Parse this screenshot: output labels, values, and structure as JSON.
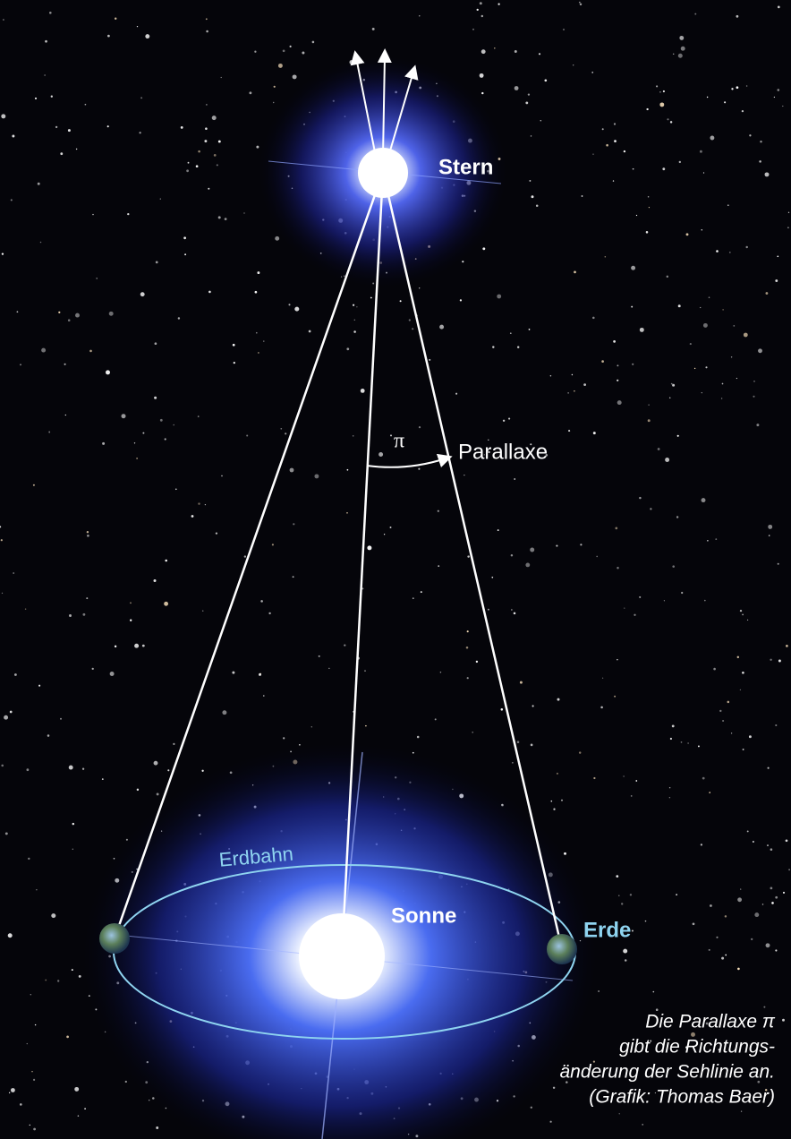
{
  "labels": {
    "star": "Stern",
    "angle": "π",
    "parallax": "Parallaxe",
    "orbit": "Erdbahn",
    "sun": "Sonne",
    "earth": "Erde"
  },
  "caption": [
    "Die Parallaxe π",
    "gibt die Richtungs-",
    "änderung der Sehlinie an.",
    "(Grafik: Thomas Baer)"
  ]
}
